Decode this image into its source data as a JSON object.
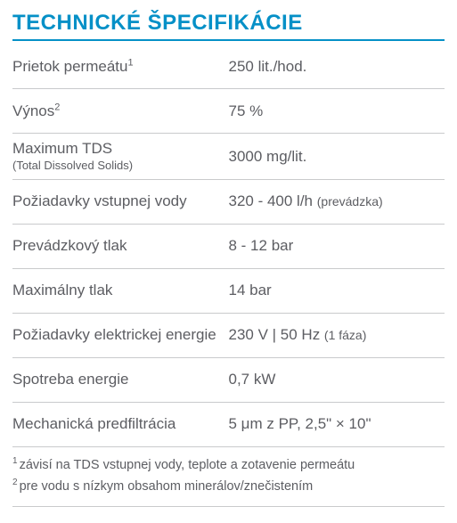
{
  "title": "TECHNICKÉ ŠPECIFIKÁCIE",
  "colors": {
    "accent": "#0590c7",
    "text": "#5c5d62",
    "divider": "#c9cacc",
    "background": "#ffffff"
  },
  "rows": [
    {
      "label": "Prietok permeátu",
      "label_sup": "1",
      "sub": "",
      "value": "250 lit./hod.",
      "value_sub": ""
    },
    {
      "label": "Výnos",
      "label_sup": "2",
      "sub": "",
      "value": "75 %",
      "value_sub": ""
    },
    {
      "label": "Maximum TDS",
      "label_sup": "",
      "sub": "(Total Dissolved Solids)",
      "value": "3000 mg/lit.",
      "value_sub": ""
    },
    {
      "label": "Požiadavky vstupnej vody",
      "label_sup": "",
      "sub": "",
      "value": "320 - 400 l/h ",
      "value_sub": "(prevádzka)"
    },
    {
      "label": "Prevádzkový tlak",
      "label_sup": "",
      "sub": "",
      "value": "8 - 12 bar",
      "value_sub": ""
    },
    {
      "label": "Maximálny tlak",
      "label_sup": "",
      "sub": "",
      "value": "14 bar",
      "value_sub": ""
    },
    {
      "label": "Požiadavky elektrickej energie",
      "label_sup": "",
      "sub": "",
      "value": "230 V | 50 Hz ",
      "value_sub": "(1 fáza)"
    },
    {
      "label": "Spotreba energie",
      "label_sup": "",
      "sub": "",
      "value": "0,7 kW",
      "value_sub": ""
    },
    {
      "label": "Mechanická predfiltrácia",
      "label_sup": "",
      "sub": "",
      "value": "5 μm z PP, 2,5\" × 10\"",
      "value_sub": ""
    }
  ],
  "footnotes": [
    {
      "mark": "1",
      "text": "závisí na TDS vstupnej vody, teplote a zotavenie permeátu"
    },
    {
      "mark": "2",
      "text": "pre vodu s nízkym obsahom minerálov/znečistením"
    }
  ]
}
